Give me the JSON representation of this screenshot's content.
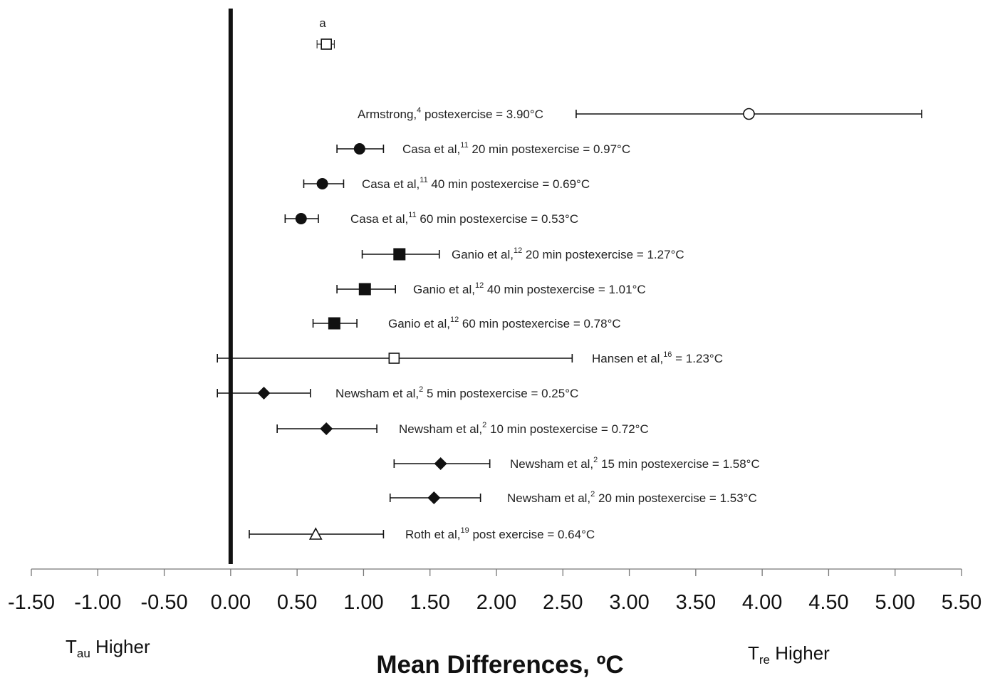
{
  "chart_data": {
    "type": "forest",
    "xlabel": "Mean Differences, ºC",
    "xlim": [
      -1.5,
      5.5
    ],
    "xticks": [
      "-1.50",
      "-1.00",
      "-0.50",
      "0.00",
      "0.50",
      "1.00",
      "1.50",
      "2.00",
      "2.50",
      "3.00",
      "3.50",
      "4.00",
      "4.50",
      "5.00",
      "5.50"
    ],
    "left_label": {
      "main": "T",
      "sub": "au",
      "rest": " Higher"
    },
    "right_label": {
      "main": "T",
      "sub": "re",
      "rest": " Higher"
    },
    "zero_line": 0,
    "pooled": {
      "label": "a",
      "mean": 0.72,
      "low": 0.65,
      "high": 0.78,
      "marker": "open-square"
    },
    "studies": [
      {
        "pre": "Armstrong,",
        "sup": "4",
        "post": " postexercise = 3.90°C",
        "mean": 3.9,
        "low": 2.6,
        "high": 5.2,
        "marker": "open-circle"
      },
      {
        "pre": "Casa et al,",
        "sup": "11",
        "post": " 20 min postexercise = 0.97°C",
        "mean": 0.97,
        "low": 0.8,
        "high": 1.15,
        "marker": "filled-circle"
      },
      {
        "pre": "Casa et al,",
        "sup": "11",
        "post": " 40 min postexercise = 0.69°C",
        "mean": 0.69,
        "low": 0.55,
        "high": 0.85,
        "marker": "filled-circle"
      },
      {
        "pre": "Casa et al,",
        "sup": "11",
        "post": " 60 min postexercise = 0.53°C",
        "mean": 0.53,
        "low": 0.41,
        "high": 0.66,
        "marker": "filled-circle"
      },
      {
        "pre": "Ganio et al,",
        "sup": "12",
        "post": " 20 min postexercise = 1.27°C",
        "mean": 1.27,
        "low": 0.99,
        "high": 1.57,
        "marker": "filled-square"
      },
      {
        "pre": "Ganio et al,",
        "sup": "12",
        "post": " 40 min postexercise = 1.01°C",
        "mean": 1.01,
        "low": 0.8,
        "high": 1.24,
        "marker": "filled-square"
      },
      {
        "pre": "Ganio et al,",
        "sup": "12",
        "post": " 60 min postexercise = 0.78°C",
        "mean": 0.78,
        "low": 0.62,
        "high": 0.95,
        "marker": "filled-square"
      },
      {
        "pre": "Hansen et al,",
        "sup": "16",
        "post": " = 1.23°C",
        "mean": 1.23,
        "low": -0.1,
        "high": 2.57,
        "marker": "open-square"
      },
      {
        "pre": "Newsham et al,",
        "sup": "2",
        "post": " 5 min postexercise = 0.25°C",
        "mean": 0.25,
        "low": -0.1,
        "high": 0.6,
        "marker": "filled-diamond"
      },
      {
        "pre": "Newsham et al,",
        "sup": "2",
        "post": " 10 min postexercise = 0.72°C",
        "mean": 0.72,
        "low": 0.35,
        "high": 1.1,
        "marker": "filled-diamond"
      },
      {
        "pre": "Newsham et al,",
        "sup": "2",
        "post": " 15 min postexercise = 1.58°C",
        "mean": 1.58,
        "low": 1.23,
        "high": 1.95,
        "marker": "filled-diamond"
      },
      {
        "pre": "Newsham et al,",
        "sup": "2",
        "post": " 20 min postexercise = 1.53°C",
        "mean": 1.53,
        "low": 1.2,
        "high": 1.88,
        "marker": "filled-diamond"
      },
      {
        "pre": "Roth et al,",
        "sup": "19",
        "post": " post  exercise = 0.64°C",
        "mean": 0.64,
        "low": 0.14,
        "high": 1.15,
        "marker": "open-triangle"
      }
    ]
  }
}
